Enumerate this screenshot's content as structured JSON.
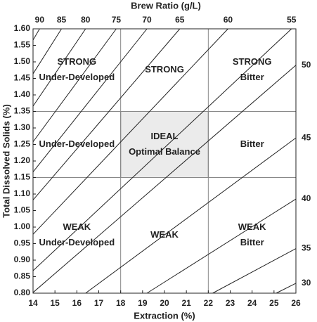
{
  "chart_data": {
    "type": "brew_control",
    "x_label": "Extraction (%)",
    "y_label": "Total Dissolved Solids (%)",
    "top_label": "Brew Ratio (g/L)",
    "xlim": [
      14,
      26
    ],
    "xticks": [
      14,
      15,
      16,
      17,
      18,
      19,
      20,
      21,
      22,
      23,
      24,
      25,
      26
    ],
    "ylim": [
      0.8,
      1.6
    ],
    "yticks": [
      {
        "value": 0.8,
        "label": "0.80"
      },
      0.85,
      {
        "value": 0.9,
        "label": "0.90"
      },
      0.95,
      {
        "value": 1.0,
        "label": "1.00"
      },
      1.05,
      {
        "value": 1.1,
        "label": "1.10"
      },
      1.15,
      {
        "value": 1.2,
        "label": "1.20"
      },
      1.25,
      {
        "value": 1.3,
        "label": "1.30"
      },
      1.35,
      {
        "value": 1.4,
        "label": "1.40"
      },
      1.45,
      {
        "value": 1.5,
        "label": "1.50"
      },
      1.55,
      {
        "value": 1.6,
        "label": "1.60"
      }
    ],
    "ideal_range": {
      "x": [
        18,
        22
      ],
      "y": [
        1.15,
        1.35
      ],
      "color": "#ebebeb"
    },
    "regions": [
      {
        "lines": [
          "STRONG",
          "Under-Developed"
        ]
      },
      {
        "lines": [
          "STRONG"
        ]
      },
      {
        "lines": [
          "STRONG",
          "Bitter"
        ]
      },
      {
        "lines": [
          "Under-Developed"
        ]
      },
      {
        "lines": [
          "IDEAL",
          "Optimal Balance"
        ]
      },
      {
        "lines": [
          "Bitter"
        ]
      },
      {
        "lines": [
          "WEAK",
          "Under-Developed"
        ]
      },
      {
        "lines": [
          "WEAK"
        ]
      },
      {
        "lines": [
          "WEAK",
          "Bitter"
        ]
      }
    ],
    "brew_ratio_lines": [
      {
        "ratio": 90,
        "x": [
          14,
          14.3
        ],
        "y": [
          1.566,
          1.6
        ]
      },
      {
        "ratio": 85,
        "x": [
          14,
          15.3
        ],
        "y": [
          1.464,
          1.6
        ]
      },
      {
        "ratio": 80,
        "x": [
          14,
          16.4
        ],
        "y": [
          1.366,
          1.6
        ]
      },
      {
        "ratio": 75,
        "x": [
          14,
          17.8
        ],
        "y": [
          1.258,
          1.6
        ]
      },
      {
        "ratio": 70,
        "x": [
          14,
          19.2
        ],
        "y": [
          1.167,
          1.6
        ]
      },
      {
        "ratio": 65,
        "x": [
          14,
          20.7
        ],
        "y": [
          1.082,
          1.6
        ]
      },
      {
        "ratio": 60,
        "x": [
          14,
          22.9
        ],
        "y": [
          0.978,
          1.6
        ]
      },
      {
        "ratio": 55,
        "x": [
          14,
          25.8
        ],
        "y": [
          0.868,
          1.6
        ]
      },
      {
        "ratio": 50,
        "x": [
          14,
          26
        ],
        "y": [
          0.802,
          1.49
        ]
      },
      {
        "ratio": 45,
        "x": [
          16.4,
          26
        ],
        "y": [
          0.8,
          1.27
        ]
      },
      {
        "ratio": 40,
        "x": [
          19.2,
          26
        ],
        "y": [
          0.8,
          1.085
        ]
      },
      {
        "ratio": 35,
        "x": [
          22.2,
          26
        ],
        "y": [
          0.8,
          0.935
        ]
      },
      {
        "ratio": 30,
        "x": [
          25.1,
          26
        ],
        "y": [
          0.8,
          0.83
        ]
      }
    ]
  }
}
